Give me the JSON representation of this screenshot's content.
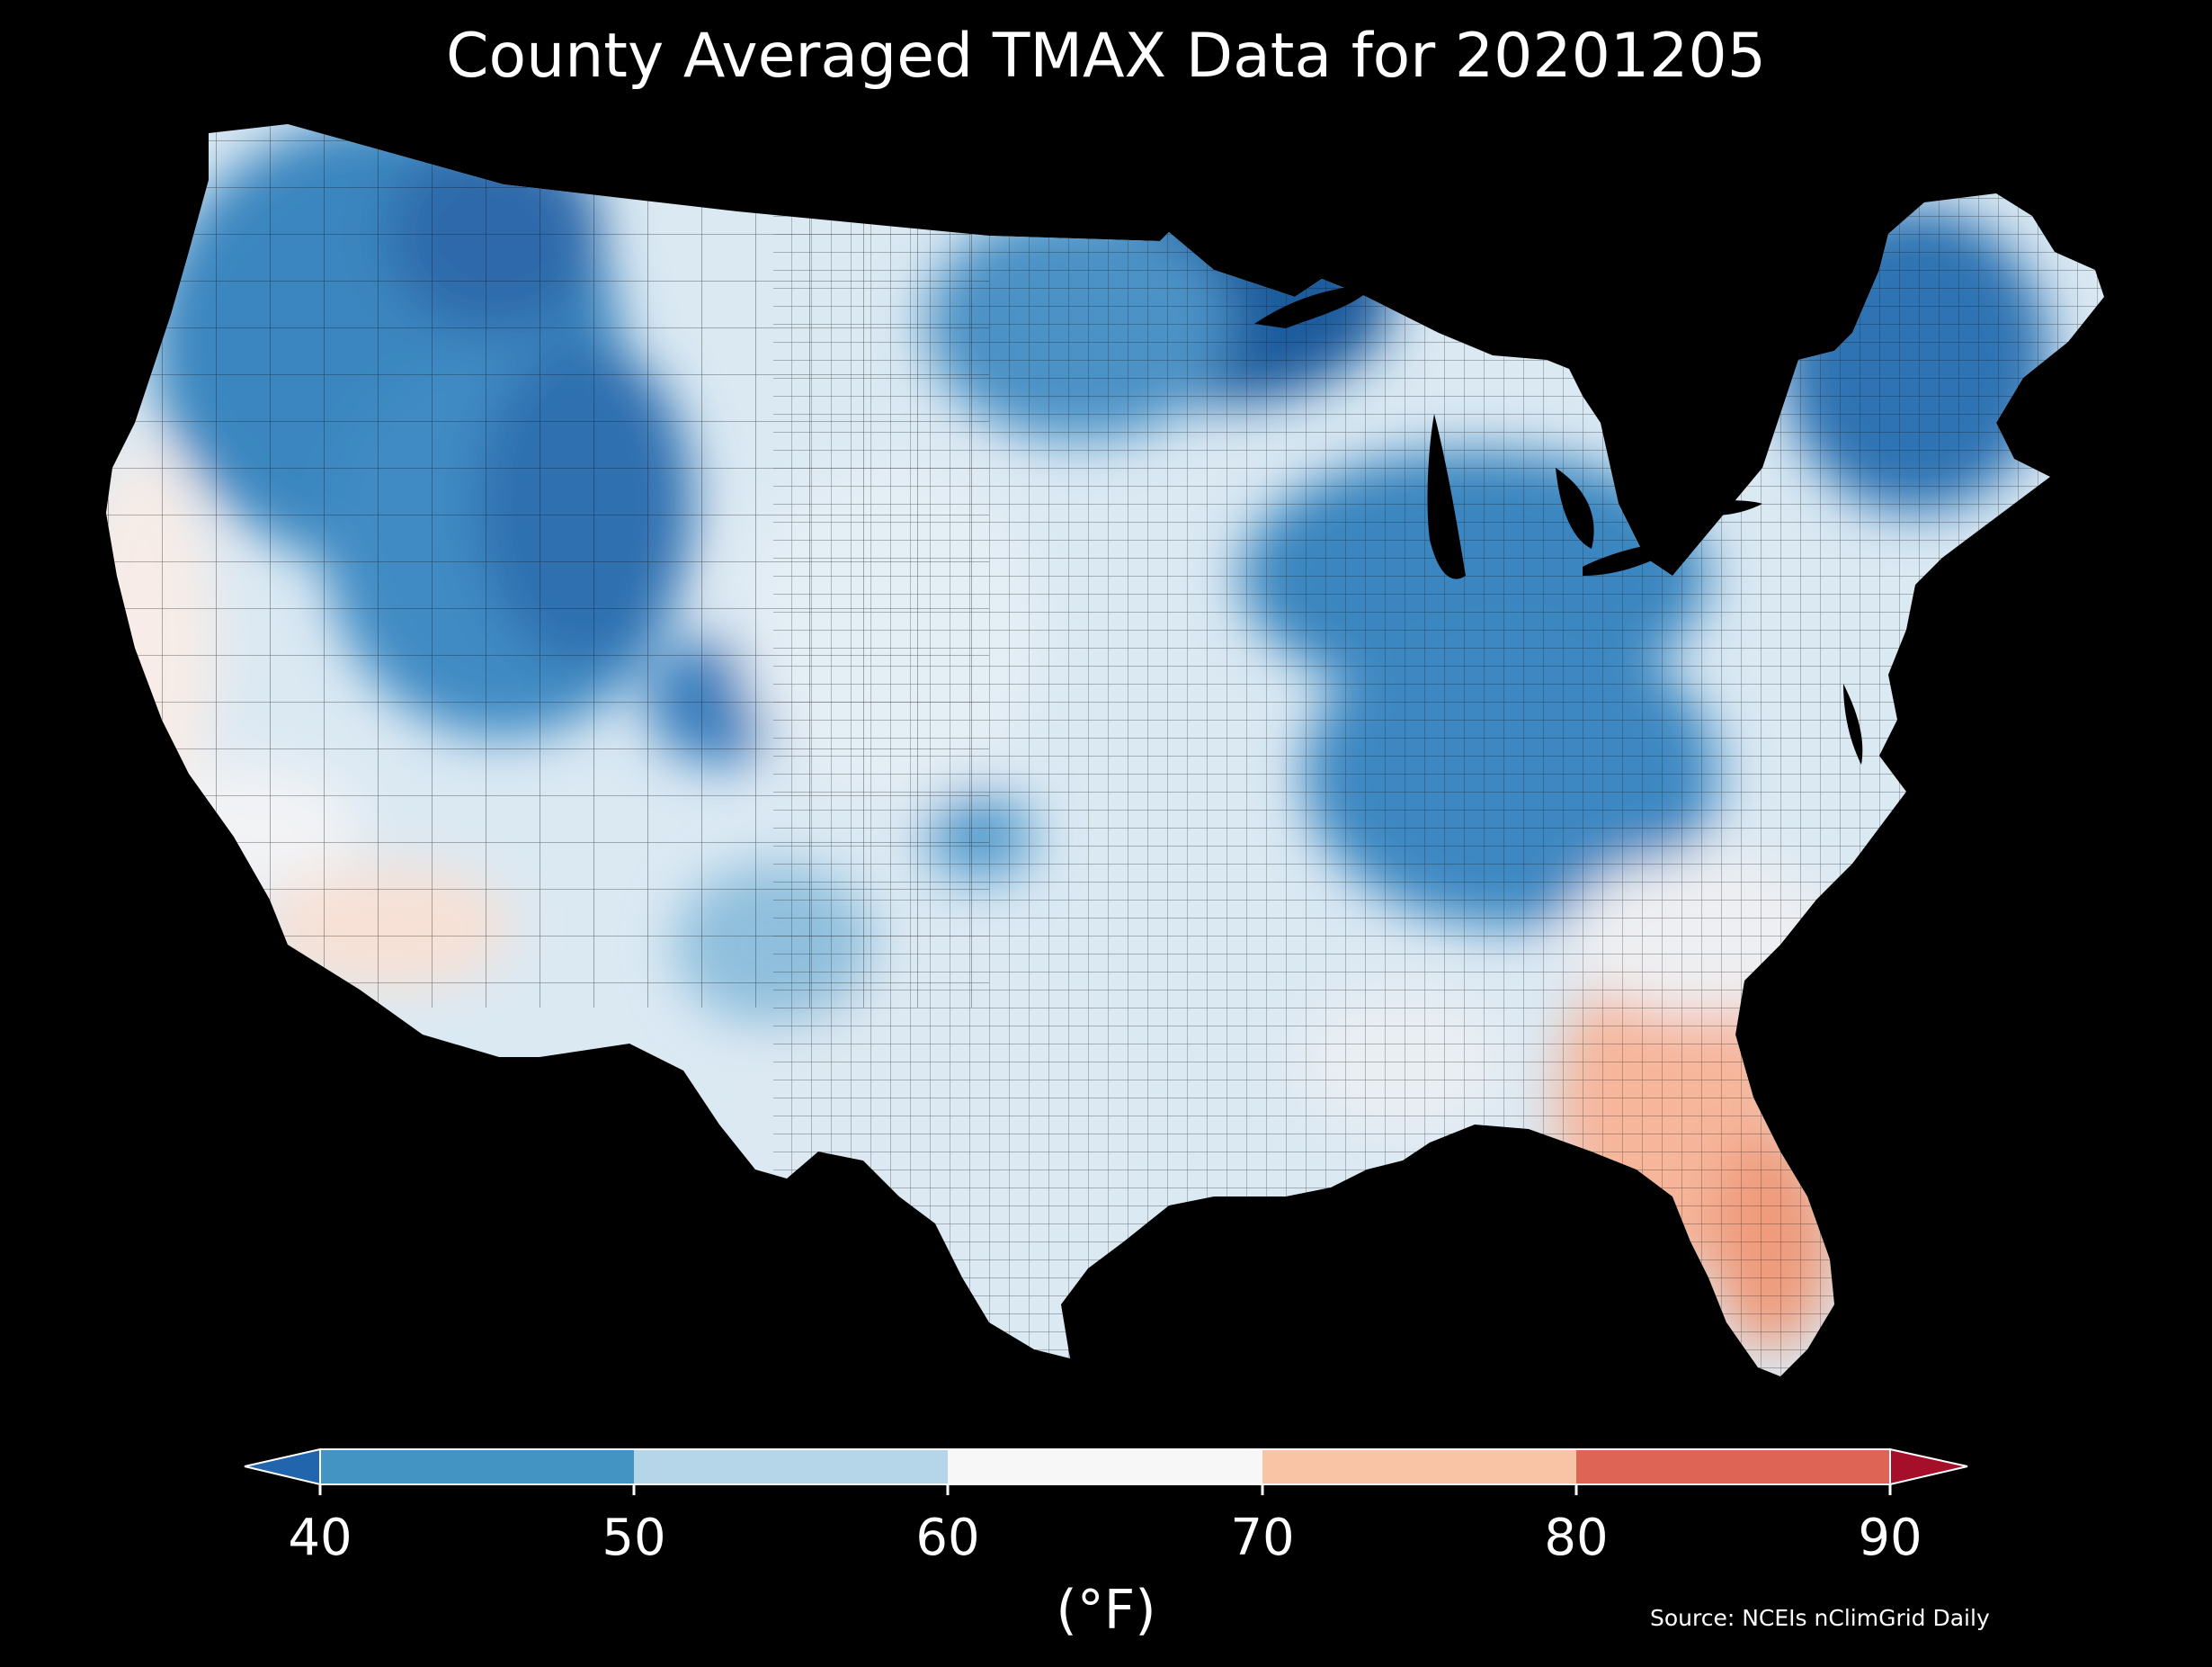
{
  "title": "County Averaged TMAX Data for 20201205",
  "colorbar": {
    "units_label": "(°F)",
    "ticks": [
      "40",
      "50",
      "60",
      "70",
      "80",
      "90"
    ],
    "bins": [
      {
        "range": "<40",
        "color": "#2166ac"
      },
      {
        "range": "40-50",
        "color": "#4393c3"
      },
      {
        "range": "50-60",
        "color": "#b5d5e8"
      },
      {
        "range": "60-70",
        "color": "#f7f7f7"
      },
      {
        "range": "70-80",
        "color": "#f9c3a6"
      },
      {
        "range": "80-90",
        "color": "#de6556"
      },
      {
        "range": ">90",
        "color": "#a50f2a"
      }
    ],
    "extend": "both"
  },
  "map": {
    "region": "Contiguous United States",
    "unit": "county",
    "variable": "TMAX",
    "background": "#000000",
    "border_color": "#1a1a1a"
  },
  "source": "Source: NCEIs nClimGrid Daily"
}
